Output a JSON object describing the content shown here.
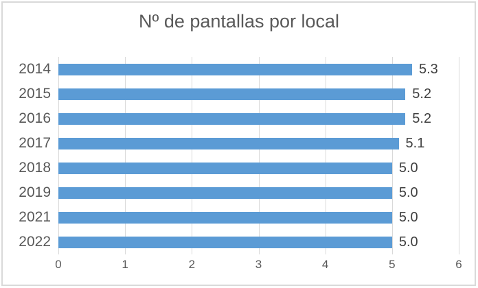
{
  "chart": {
    "colors": {
      "bar_fill": "#5b9bd5",
      "gridline": "#d9d9d9",
      "axis_text": "#595959",
      "data_label_text": "#404040",
      "border": "#d9d9d9",
      "background": "#ffffff"
    }
  },
  "chart_data": {
    "type": "bar",
    "orientation": "horizontal",
    "title": "Nº de pantallas por local",
    "categories": [
      "2014",
      "2015",
      "2016",
      "2017",
      "2018",
      "2019",
      "2021",
      "2022"
    ],
    "values": [
      5.3,
      5.2,
      5.2,
      5.1,
      5.0,
      5.0,
      5.0,
      5.0
    ],
    "data_labels": [
      "5.3",
      "5.2",
      "5.2",
      "5.1",
      "5.0",
      "5.0",
      "5.0",
      "5.0"
    ],
    "xlabel": "",
    "ylabel": "",
    "xlim": [
      0,
      6
    ],
    "xticks": [
      0,
      1,
      2,
      3,
      4,
      5,
      6
    ],
    "xtick_labels": [
      "0",
      "1",
      "2",
      "3",
      "4",
      "5",
      "6"
    ],
    "grid": true,
    "legend": "none"
  }
}
